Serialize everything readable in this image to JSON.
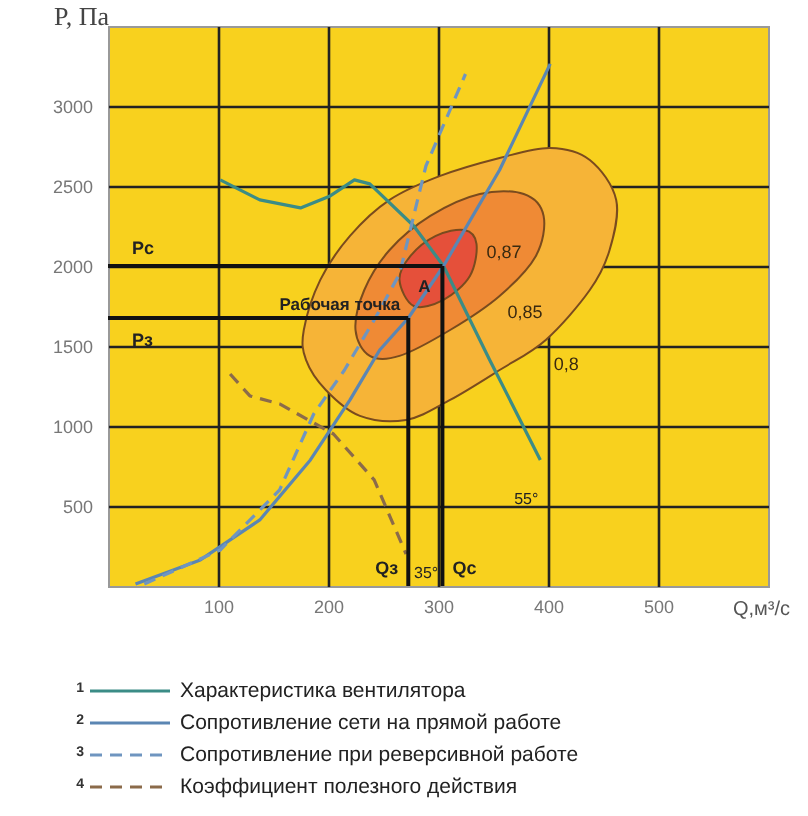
{
  "chart_data": {
    "type": "line",
    "xlabel": "Q,м³/с",
    "ylabel": "P, Па",
    "xlim": [
      0,
      600
    ],
    "ylim": [
      0,
      3500
    ],
    "xticks": [
      100,
      200,
      300,
      400,
      500
    ],
    "yticks": [
      500,
      1000,
      1500,
      2000,
      2500,
      3000
    ],
    "grid": true,
    "legend": "bottom",
    "series": [
      {
        "name": "0,8",
        "type": "area",
        "color": "#f6b437",
        "x": [
          178,
          193,
          220,
          256,
          302,
          356,
          402,
          438,
          462,
          456,
          438,
          398,
          356,
          311,
          271,
          229,
          198,
          180
        ],
        "values": [
          1600,
          1913,
          2188,
          2413,
          2563,
          2675,
          2738,
          2663,
          2413,
          2100,
          1850,
          1538,
          1350,
          1163,
          1038,
          1063,
          1225,
          1413
        ]
      },
      {
        "name": "0,85",
        "type": "area",
        "color": "#ef8a35",
        "x": [
          225,
          233,
          256,
          293,
          338,
          378,
          396,
          389,
          356,
          311,
          265,
          238
        ],
        "values": [
          1600,
          1850,
          2100,
          2313,
          2450,
          2450,
          2313,
          2063,
          1813,
          1600,
          1438,
          1438
        ]
      },
      {
        "name": "0,87",
        "type": "area",
        "color": "#e5503a",
        "x": [
          265,
          275,
          298,
          324,
          335,
          329,
          305,
          278
        ],
        "values": [
          1913,
          2063,
          2188,
          2225,
          2138,
          1938,
          1788,
          1750
        ]
      },
      {
        "name": "Характеристика вентилятора",
        "color": "#3b8c86",
        "line_style": "solid",
        "x": [
          102,
          138,
          175,
          202,
          224,
          238,
          278,
          305,
          347,
          393
        ],
        "values": [
          2538,
          2413,
          2363,
          2438,
          2538,
          2513,
          2250,
          2000,
          1413,
          788
        ]
      },
      {
        "name": "Сопротивление сети на прямой работе",
        "color": "#5b86b3",
        "line_style": "solid",
        "x": [
          25,
          84,
          138,
          184,
          220,
          247,
          273,
          305,
          356,
          402
        ],
        "values": [
          12,
          163,
          413,
          788,
          1163,
          1475,
          1675,
          2000,
          2600,
          3263
        ]
      },
      {
        "name": "Сопротивление при реверсивной работе",
        "color": "#6f95c0",
        "line_style": "dashed",
        "x": [
          33,
          102,
          156,
          187,
          215,
          242,
          265,
          289,
          325
        ],
        "values": [
          12,
          225,
          600,
          1075,
          1350,
          1663,
          1950,
          2625,
          3200
        ]
      },
      {
        "name": "Коэффициент полезного действия",
        "color": "#8b6b4a",
        "line_style": "dashed",
        "x": [
          111,
          129,
          156,
          205,
          242,
          271
        ],
        "values": [
          1325,
          1188,
          1138,
          950,
          663,
          200
        ]
      },
      {
        "name": "Рс",
        "color": "#111111",
        "x": [
          0,
          304
        ],
        "values": [
          2000,
          2000
        ]
      },
      {
        "name": "Рз",
        "color": "#111111",
        "x": [
          0,
          273
        ],
        "values": [
          1675,
          1675
        ]
      },
      {
        "name": "Qз",
        "color": "#111111",
        "x": [
          273,
          273
        ],
        "values": [
          0,
          1675
        ]
      },
      {
        "name": "Qс",
        "color": "#111111",
        "x": [
          304,
          304
        ],
        "values": [
          0,
          2000
        ]
      }
    ],
    "annotations": [
      {
        "text": "A",
        "x": 304,
        "y": 2000
      },
      {
        "text": "Рабочая точка",
        "x": 273,
        "y": 1675
      },
      {
        "text": "55°",
        "x": 393,
        "y": 788
      },
      {
        "text": "35°",
        "x": 271,
        "y": 200
      },
      "1",
      "2",
      "3",
      "4"
    ]
  }
}
